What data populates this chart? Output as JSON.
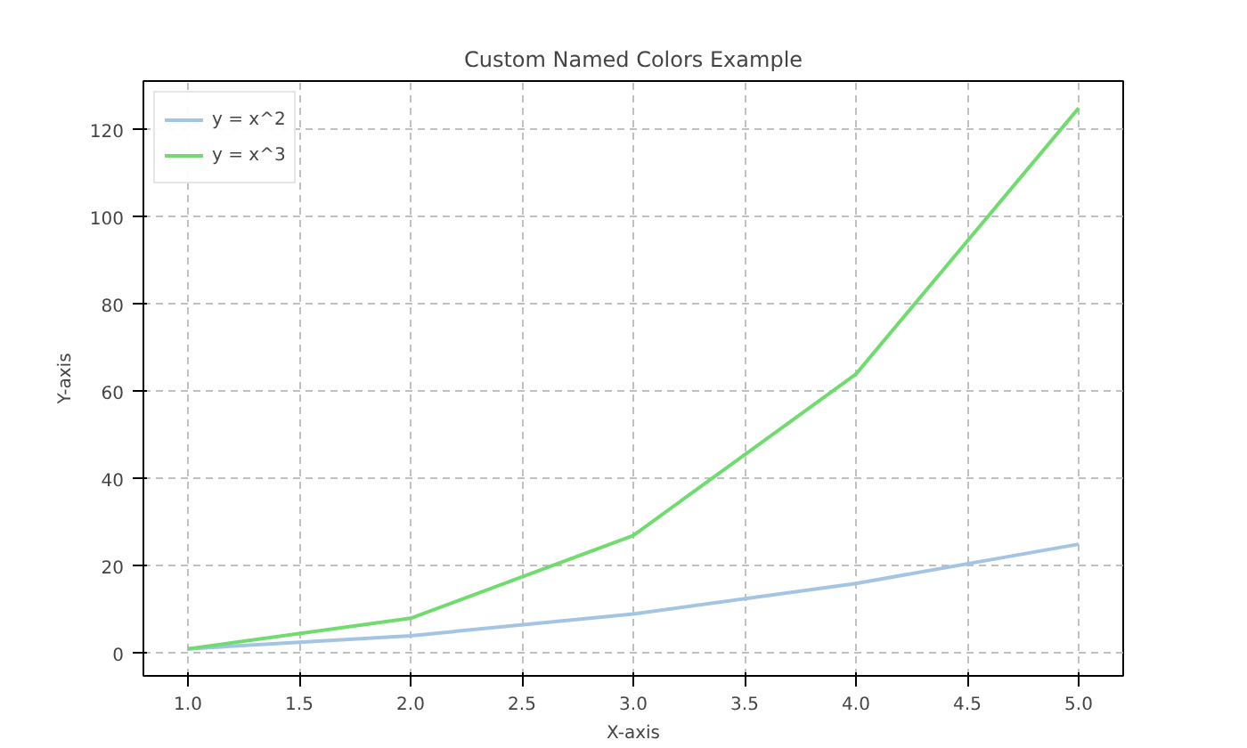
{
  "chart_data": {
    "type": "line",
    "title": "Custom Named Colors Example",
    "xlabel": "X-axis",
    "ylabel": "Y-axis",
    "x": [
      1,
      2,
      3,
      4,
      5
    ],
    "series": [
      {
        "name": "y = x^2",
        "color": "#a4c4e4",
        "values": [
          1,
          4,
          9,
          16,
          25
        ]
      },
      {
        "name": "y = x^3",
        "color": "#70dc70",
        "values": [
          1,
          8,
          27,
          64,
          125
        ]
      }
    ],
    "xlim": [
      0.8,
      5.2
    ],
    "ylim": [
      -5.2,
      131.2
    ],
    "xticks": [
      {
        "value": 1,
        "label": "1.0"
      },
      {
        "value": 1.5,
        "label": "1.5"
      },
      {
        "value": 2,
        "label": "2.0"
      },
      {
        "value": 2.5,
        "label": "2.5"
      },
      {
        "value": 3,
        "label": "3.0"
      },
      {
        "value": 3.5,
        "label": "3.5"
      },
      {
        "value": 4,
        "label": "4.0"
      },
      {
        "value": 4.5,
        "label": "4.5"
      },
      {
        "value": 5,
        "label": "5.0"
      }
    ],
    "yticks": [
      0,
      20,
      40,
      60,
      80,
      100,
      120
    ],
    "grid": true,
    "legend": "top left",
    "line_style": "solid"
  }
}
